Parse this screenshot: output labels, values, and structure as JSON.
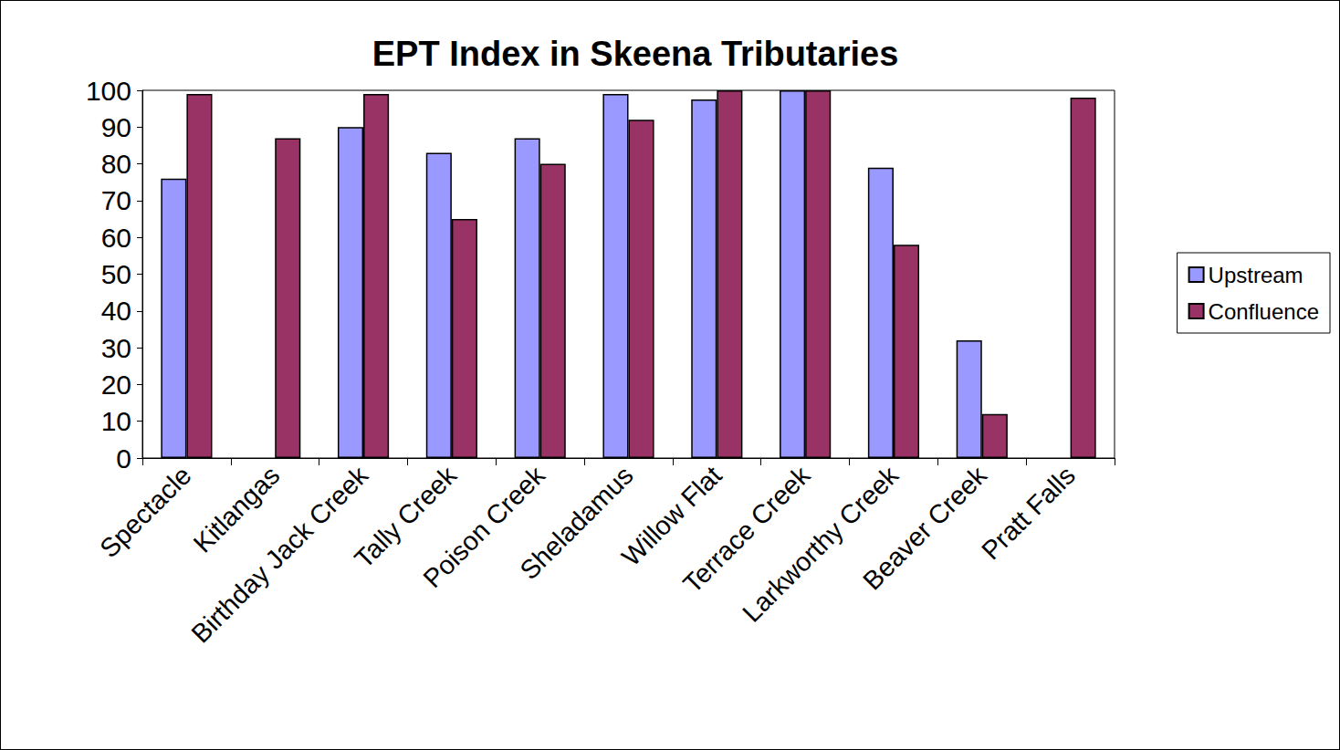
{
  "chart_data": {
    "type": "bar",
    "title": "EPT Index in Skeena Tributaries",
    "categories": [
      "Spectacle",
      "Kitlangas",
      "Birthday Jack Creek",
      "Tally Creek",
      "Poison Creek",
      "Sheladamus",
      "Willow Flat",
      "Terrace Creek",
      "Larkworthy Creek",
      "Beaver Creek",
      "Pratt Falls"
    ],
    "series": [
      {
        "name": "Upstream",
        "color": "#9999ff",
        "values": [
          76,
          null,
          90,
          83,
          87,
          99,
          97.5,
          100,
          79,
          32,
          null
        ]
      },
      {
        "name": "Confluence",
        "color": "#993366",
        "values": [
          99,
          87,
          99,
          65,
          80,
          92,
          100,
          100,
          58,
          12,
          98
        ]
      }
    ],
    "ylim": [
      0,
      100
    ],
    "yticks": [
      0,
      10,
      20,
      30,
      40,
      50,
      60,
      70,
      80,
      90,
      100
    ],
    "grid": false,
    "legend": "right"
  }
}
